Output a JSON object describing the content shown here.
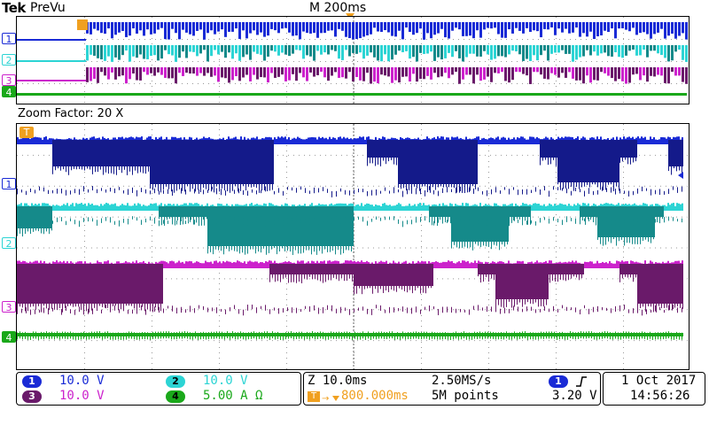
{
  "header": {
    "brand": "Tek",
    "mode": "PreVu",
    "timebase": "M 200ms"
  },
  "zoom": {
    "factor_label": "Zoom Factor: 20 X"
  },
  "colors": {
    "ch1": "#1a2bd6",
    "ch1_dark": "#141a8a",
    "ch2": "#2cd4d4",
    "ch2_dark": "#158a8a",
    "ch3": "#cc22cc",
    "ch3_dark": "#6a1a6a",
    "ch4": "#1aa81a",
    "trigger": "#f0a020"
  },
  "channels": [
    {
      "id": "1",
      "scale": "10.0 V",
      "color": "#1a2bd6"
    },
    {
      "id": "2",
      "scale": "10.0 V",
      "color": "#2cd4d4"
    },
    {
      "id": "3",
      "scale": "10.0 V",
      "color": "#cc22cc"
    },
    {
      "id": "4",
      "scale": "5.00 A",
      "unit_symbol": "Ω",
      "color": "#1aa81a"
    }
  ],
  "horizontal": {
    "zoom_scale": "Z 10.0ms",
    "sample_rate": "2.50MS/s",
    "trigger_position": "800.000ms",
    "record_length": "5M points"
  },
  "trigger": {
    "source": "1",
    "slope_icon": "rising-edge-icon",
    "level": "3.20 V"
  },
  "datetime": {
    "date": "1 Oct  2017",
    "time": "14:56:26"
  },
  "markers": {
    "trigger_label": "T"
  }
}
